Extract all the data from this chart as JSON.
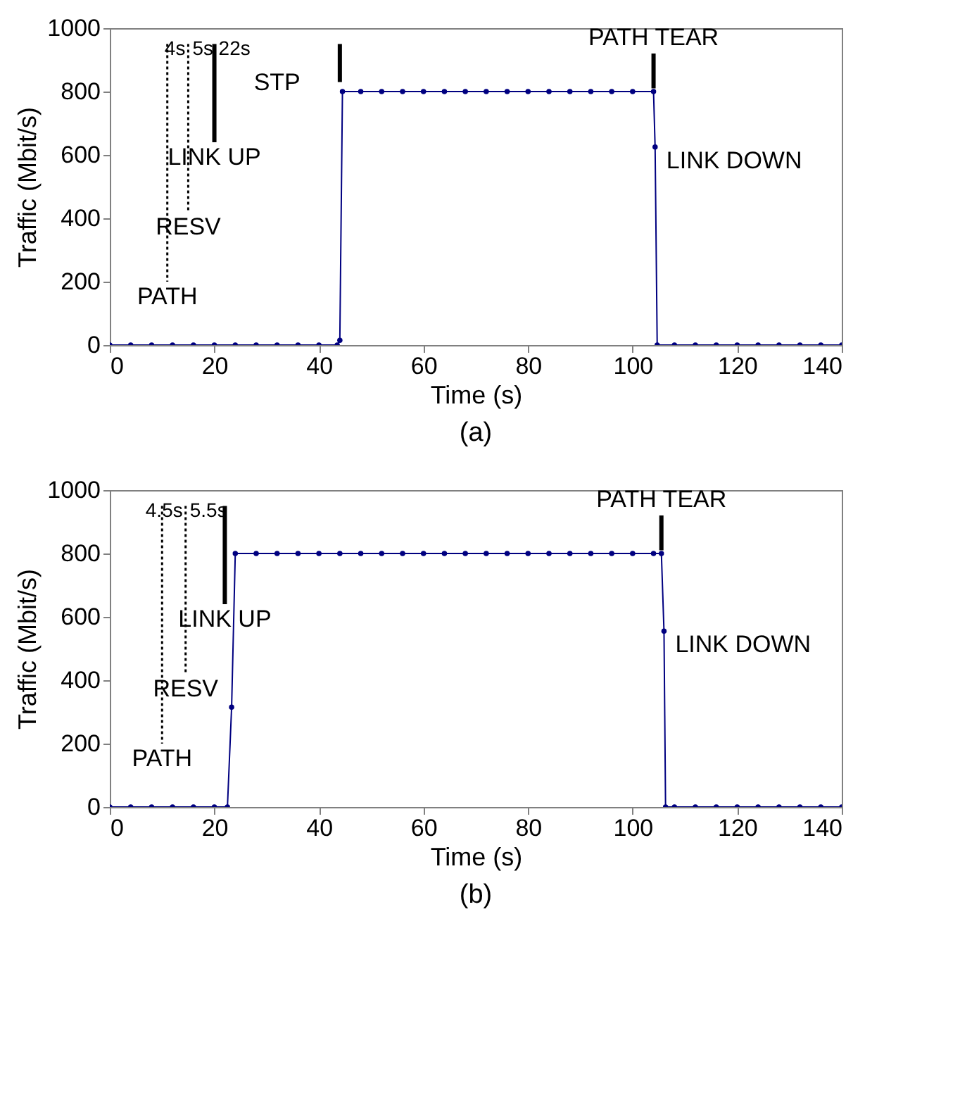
{
  "chart_data": [
    {
      "type": "line",
      "title": "(a)",
      "xlabel": "Time (s)",
      "ylabel": "Traffic (Mbit/s)",
      "xlim": [
        0,
        140
      ],
      "xticks": [
        0,
        20,
        40,
        60,
        80,
        100,
        120,
        140
      ],
      "ylim": [
        0,
        1000
      ],
      "yticks": [
        0,
        200,
        400,
        600,
        800,
        1000
      ],
      "grid": false,
      "marker": "circle",
      "line_style": "solid",
      "series": [
        {
          "color": "#000080",
          "x": [
            0,
            4,
            8,
            12,
            16,
            20,
            24,
            28,
            32,
            36,
            40,
            43.5,
            44,
            44.5,
            48,
            52,
            56,
            60,
            64,
            68,
            72,
            76,
            80,
            84,
            88,
            92,
            96,
            100,
            104,
            104.3,
            104.7,
            108,
            112,
            116,
            120,
            124,
            128,
            132,
            136,
            140
          ],
          "values": [
            0,
            0,
            0,
            0,
            0,
            0,
            0,
            0,
            0,
            0,
            0,
            0,
            15,
            800,
            800,
            800,
            800,
            800,
            800,
            800,
            800,
            800,
            800,
            800,
            800,
            800,
            800,
            800,
            800,
            625,
            0,
            0,
            0,
            0,
            0,
            0,
            0,
            0,
            0,
            0
          ]
        }
      ],
      "ref_lines": [
        {
          "axis": "x",
          "value": 11,
          "line_style": "dotted",
          "label": "PATH"
        },
        {
          "axis": "x",
          "value": 15,
          "line_style": "dotted",
          "label": "RESV"
        },
        {
          "axis": "x",
          "value": 20,
          "line_style": "solid",
          "label": "LINK UP"
        },
        {
          "axis": "x",
          "value": 44,
          "line_style": "solid"
        },
        {
          "axis": "x",
          "value": 104,
          "line_style": "solid",
          "label": "PATH TEAR"
        }
      ],
      "annotations": [
        "4s",
        "5s",
        "22s",
        "STP",
        {
          "text": "LINK DOWN",
          "x": 104.3,
          "y": 625
        }
      ]
    },
    {
      "type": "line",
      "title": "(b)",
      "xlabel": "Time (s)",
      "ylabel": "Traffic (Mbit/s)",
      "xlim": [
        0,
        140
      ],
      "xticks": [
        0,
        20,
        40,
        60,
        80,
        100,
        120,
        140
      ],
      "ylim": [
        0,
        1000
      ],
      "yticks": [
        0,
        200,
        400,
        600,
        800,
        1000
      ],
      "grid": false,
      "marker": "circle",
      "line_style": "solid",
      "series": [
        {
          "color": "#000080",
          "x": [
            0,
            4,
            8,
            12,
            16,
            20,
            22.5,
            23.3,
            24,
            28,
            32,
            36,
            40,
            44,
            48,
            52,
            56,
            60,
            64,
            68,
            72,
            76,
            80,
            84,
            88,
            92,
            96,
            100,
            104,
            105.5,
            106,
            106.3,
            108,
            112,
            116,
            120,
            124,
            128,
            132,
            136,
            140
          ],
          "values": [
            0,
            0,
            0,
            0,
            0,
            0,
            0,
            315,
            800,
            800,
            800,
            800,
            800,
            800,
            800,
            800,
            800,
            800,
            800,
            800,
            800,
            800,
            800,
            800,
            800,
            800,
            800,
            800,
            800,
            800,
            555,
            0,
            0,
            0,
            0,
            0,
            0,
            0,
            0,
            0,
            0
          ]
        }
      ],
      "ref_lines": [
        {
          "axis": "x",
          "value": 10,
          "line_style": "dotted",
          "label": "PATH"
        },
        {
          "axis": "x",
          "value": 14.5,
          "line_style": "dotted",
          "label": "RESV"
        },
        {
          "axis": "x",
          "value": 22,
          "line_style": "solid",
          "label": "LINK UP"
        },
        {
          "axis": "x",
          "value": 105.5,
          "line_style": "solid",
          "label": "PATH TEAR"
        }
      ],
      "annotations": [
        "4.5s",
        "5.5s",
        {
          "text": "LINK DOWN",
          "x": 106,
          "y": 555
        }
      ]
    }
  ]
}
